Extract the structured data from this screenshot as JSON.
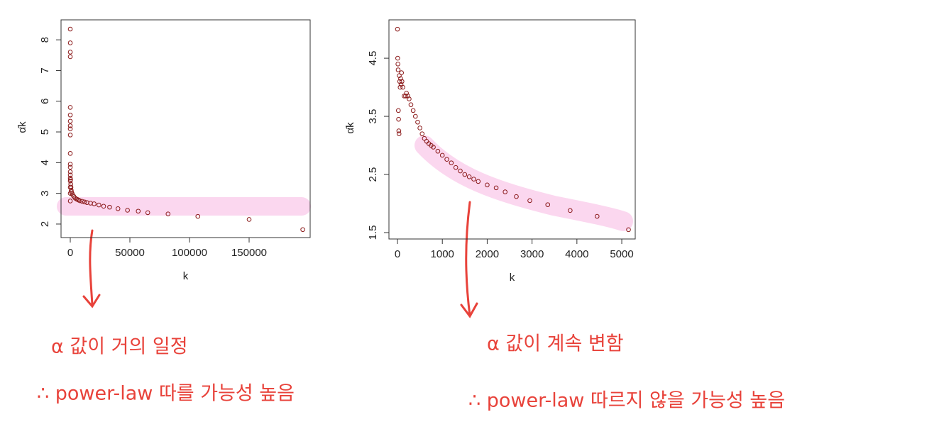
{
  "chart_data": [
    {
      "type": "scatter",
      "xlabel": "k",
      "ylabel": "α̂k",
      "color": "#8b1a1a",
      "xlim": [
        -7740,
        201190
      ],
      "ylim": [
        1.56,
        8.65
      ],
      "xticks": [
        0,
        50000,
        100000,
        150000
      ],
      "yticks": [
        2,
        3,
        4,
        5,
        6,
        7,
        8
      ],
      "x": [
        0,
        0,
        0,
        0,
        0,
        0,
        0,
        0,
        0,
        0,
        0,
        0,
        0,
        0,
        0,
        0,
        0,
        0,
        0,
        0,
        200,
        400,
        600,
        800,
        1000,
        1500,
        2000,
        3000,
        4000,
        5000,
        6000,
        7000,
        8000,
        10000,
        12000,
        14000,
        17000,
        20000,
        24000,
        28000,
        33000,
        40000,
        48000,
        57000,
        65000,
        82000,
        107000,
        150000,
        195000
      ],
      "values": [
        8.35,
        7.9,
        7.6,
        7.45,
        5.8,
        5.55,
        5.35,
        5.2,
        5.1,
        4.9,
        4.3,
        3.95,
        3.85,
        3.7,
        3.6,
        3.5,
        3.4,
        3.2,
        3.0,
        2.75,
        3.45,
        3.3,
        3.2,
        3.1,
        3.05,
        3.0,
        2.95,
        2.9,
        2.85,
        2.82,
        2.8,
        2.78,
        2.76,
        2.74,
        2.72,
        2.7,
        2.68,
        2.66,
        2.62,
        2.58,
        2.55,
        2.5,
        2.45,
        2.42,
        2.37,
        2.33,
        2.25,
        2.15,
        1.82
      ],
      "annotations": [
        "α 값이 거의 일정",
        "∴ power-law 따를 가능성 높음"
      ]
    },
    {
      "type": "scatter",
      "xlabel": "k",
      "ylabel": "α̂k",
      "color": "#8b1a1a",
      "xlim": [
        -190,
        5300
      ],
      "ylim": [
        1.39,
        5.16
      ],
      "xticks": [
        0,
        1000,
        2000,
        3000,
        4000,
        5000
      ],
      "yticks": [
        1.5,
        2.5,
        3.5,
        4.5
      ],
      "x": [
        0,
        5,
        10,
        15,
        20,
        25,
        30,
        35,
        40,
        50,
        60,
        70,
        80,
        90,
        100,
        120,
        150,
        180,
        200,
        230,
        260,
        300,
        350,
        400,
        450,
        500,
        550,
        600,
        650,
        700,
        750,
        800,
        900,
        1000,
        1100,
        1200,
        1300,
        1400,
        1500,
        1600,
        1700,
        1800,
        2000,
        2200,
        2400,
        2650,
        2950,
        3350,
        3850,
        4450,
        5150
      ],
      "values": [
        5.0,
        4.5,
        4.4,
        4.3,
        3.6,
        3.45,
        3.25,
        3.2,
        4.2,
        4.1,
        4.0,
        4.15,
        4.05,
        4.25,
        4.1,
        4.0,
        3.85,
        3.85,
        3.9,
        3.85,
        3.8,
        3.7,
        3.6,
        3.5,
        3.4,
        3.3,
        3.2,
        3.12,
        3.07,
        3.03,
        3.0,
        2.97,
        2.9,
        2.83,
        2.76,
        2.7,
        2.62,
        2.56,
        2.5,
        2.46,
        2.42,
        2.38,
        2.32,
        2.27,
        2.2,
        2.12,
        2.05,
        1.98,
        1.88,
        1.78,
        1.55
      ],
      "annotations": [
        "α 값이 계속 변함",
        "∴ power-law 따르지 않을 가능성 높음"
      ]
    }
  ]
}
